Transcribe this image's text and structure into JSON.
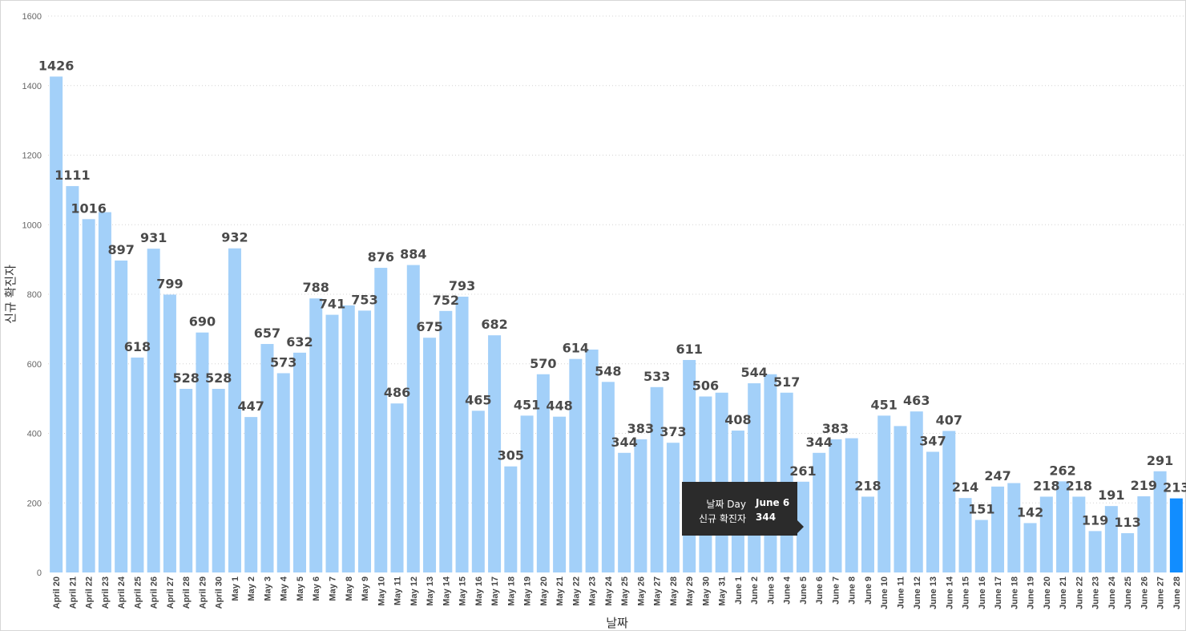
{
  "chart_data": {
    "type": "bar",
    "xlabel": "날짜",
    "ylabel": "신규 확진자",
    "ylim": [
      0,
      1600
    ],
    "yticks": [
      0,
      200,
      400,
      600,
      800,
      1000,
      1200,
      1400,
      1600
    ],
    "grid": true,
    "colors": {
      "bar": "#a3d0f9",
      "highlight": "#118dff",
      "grid": "#d4d4d4"
    },
    "highlight_index": 69,
    "categories": [
      "April 20",
      "April 21",
      "April 22",
      "April 23",
      "April 24",
      "April 25",
      "April 26",
      "April 27",
      "April 28",
      "April 29",
      "April 30",
      "May 1",
      "May 2",
      "May 3",
      "May 4",
      "May 5",
      "May 6",
      "May 7",
      "May 8",
      "May 9",
      "May 10",
      "May 11",
      "May 12",
      "May 13",
      "May 14",
      "May 15",
      "May 16",
      "May 17",
      "May 18",
      "May 19",
      "May 20",
      "May 21",
      "May 22",
      "May 23",
      "May 24",
      "May 25",
      "May 26",
      "May 27",
      "May 28",
      "May 29",
      "May 30",
      "May 31",
      "June 1",
      "June 2",
      "June 3",
      "June 4",
      "June 5",
      "June 6",
      "June 7",
      "June 8",
      "June 9",
      "June 10",
      "June 11",
      "June 12",
      "June 13",
      "June 14",
      "June 15",
      "June 16",
      "June 17",
      "June 18",
      "June 19",
      "June 20",
      "June 21",
      "June 22",
      "June 23",
      "June 24",
      "June 25",
      "June 26",
      "June 27",
      "June 28"
    ],
    "values": [
      1426,
      1111,
      1016,
      1036,
      897,
      618,
      931,
      799,
      528,
      690,
      528,
      932,
      447,
      657,
      573,
      632,
      788,
      741,
      768,
      753,
      876,
      486,
      884,
      675,
      752,
      793,
      465,
      682,
      305,
      451,
      570,
      448,
      614,
      641,
      548,
      344,
      383,
      533,
      373,
      611,
      506,
      517,
      408,
      544,
      570,
      517,
      261,
      344,
      383,
      386,
      218,
      451,
      421,
      463,
      347,
      407,
      214,
      151,
      247,
      257,
      142,
      218,
      262,
      218,
      119,
      191,
      113,
      219,
      291,
      213
    ],
    "data_labels": [
      "1426",
      "1111",
      "1016",
      "",
      "897",
      "618",
      "931",
      "799",
      "528",
      "690",
      "528",
      "932",
      "447",
      "657",
      "573",
      "632",
      "788",
      "741",
      "",
      "753",
      "876",
      "486",
      "884",
      "675",
      "752",
      "793",
      "465",
      "682",
      "305",
      "451",
      "570",
      "448",
      "614",
      "",
      "548",
      "344",
      "383",
      "533",
      "373",
      "611",
      "506",
      "",
      "408",
      "544",
      "",
      "517",
      "261",
      "344",
      "383",
      "",
      "218",
      "451",
      "",
      "463",
      "347",
      "407",
      "214",
      "151",
      "247",
      "",
      "142",
      "218",
      "262",
      "218",
      "119",
      "191",
      "113",
      "219",
      "291",
      "213"
    ]
  },
  "tooltip": {
    "rows": [
      {
        "key": "날짜 Day",
        "value": "June 6"
      },
      {
        "key": "신규 확진자",
        "value": "344"
      }
    ]
  }
}
